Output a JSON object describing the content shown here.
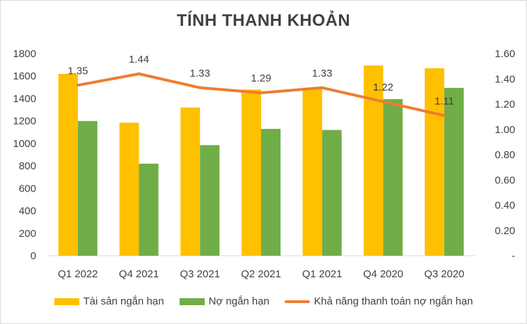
{
  "chart_data": {
    "type": "bar",
    "title": "TÍNH THANH KHOẢN",
    "categories": [
      "Q1 2022",
      "Q4 2021",
      "Q3 2021",
      "Q2 2021",
      "Q1 2021",
      "Q4 2020",
      "Q3 2020"
    ],
    "series": [
      {
        "name": "Tài sản ngắn hạn",
        "type": "bar",
        "axis": "left",
        "color": "#FFC000",
        "values": [
          1620,
          1185,
          1320,
          1480,
          1490,
          1695,
          1670
        ]
      },
      {
        "name": "Nợ ngắn hạn",
        "type": "bar",
        "axis": "left",
        "color": "#70AD47",
        "values": [
          1200,
          820,
          985,
          1130,
          1120,
          1395,
          1495
        ]
      },
      {
        "name": "Khả năng thanh toán nợ ngắn hạn",
        "type": "line",
        "axis": "right",
        "color": "#ED7D31",
        "values": [
          1.35,
          1.44,
          1.33,
          1.29,
          1.33,
          1.22,
          1.11
        ],
        "labels": [
          "1.35",
          "1.44",
          "1.33",
          "1.29",
          "1.33",
          "1.22",
          "1.11"
        ]
      }
    ],
    "ylim_left": [
      0,
      1800
    ],
    "yticks_left": [
      "0",
      "200",
      "400",
      "600",
      "800",
      "1000",
      "1200",
      "1400",
      "1600",
      "1800"
    ],
    "ylim_right": [
      0,
      1.6
    ],
    "yticks_right": [
      "-",
      "0.20",
      "0.40",
      "0.60",
      "0.80",
      "1.00",
      "1.20",
      "1.40",
      "1.60"
    ],
    "grid": false,
    "legend_position": "bottom"
  }
}
